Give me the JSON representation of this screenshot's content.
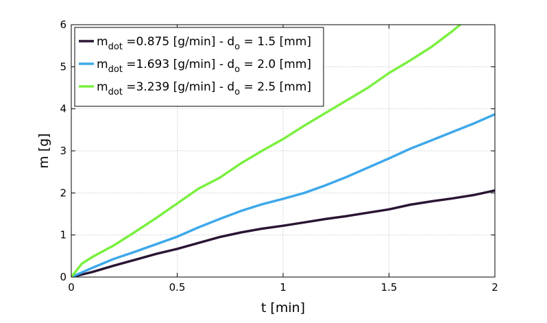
{
  "chart_data": {
    "type": "line",
    "xlabel": "t [min]",
    "ylabel": "m [g]",
    "xlim": [
      0,
      2
    ],
    "ylim": [
      0,
      6
    ],
    "xticks": [
      0,
      0.5,
      1,
      1.5,
      2
    ],
    "xtick_labels": [
      "0",
      "0.5",
      "1",
      "1.5",
      "2"
    ],
    "yticks": [
      0,
      1,
      2,
      3,
      4,
      5,
      6
    ],
    "ytick_labels": [
      "0",
      "1",
      "2",
      "3",
      "4",
      "5",
      "6"
    ],
    "grid": true,
    "legend_position": "top-left",
    "series": [
      {
        "name": "m_dot =0.875 [g/min] - d_o = 1.5 [mm]",
        "legend_parts": {
          "sym": "m",
          "sub": "dot",
          "mid": " =0.875 [g/min] - d",
          "sub2": "o",
          "tail": " = 1.5 [mm]"
        },
        "color": "#2a1533",
        "x": [
          0,
          0.1,
          0.2,
          0.3,
          0.4,
          0.5,
          0.6,
          0.7,
          0.8,
          0.9,
          1.0,
          1.1,
          1.2,
          1.3,
          1.4,
          1.5,
          1.6,
          1.7,
          1.8,
          1.9,
          2.0
        ],
        "y": [
          0,
          0.12,
          0.27,
          0.41,
          0.55,
          0.67,
          0.81,
          0.95,
          1.06,
          1.15,
          1.22,
          1.3,
          1.38,
          1.45,
          1.53,
          1.61,
          1.72,
          1.8,
          1.87,
          1.95,
          2.06
        ]
      },
      {
        "name": "m_dot =1.693 [g/min] - d_o = 2.0 [mm]",
        "legend_parts": {
          "sym": "m",
          "sub": "dot",
          "mid": " =1.693 [g/min] - d",
          "sub2": "o",
          "tail": " = 2.0 [mm]"
        },
        "color": "#3ea8ea",
        "x": [
          0,
          0.1,
          0.2,
          0.3,
          0.4,
          0.5,
          0.6,
          0.7,
          0.8,
          0.9,
          1.0,
          1.1,
          1.2,
          1.3,
          1.4,
          1.5,
          1.6,
          1.7,
          1.8,
          1.9,
          2.0
        ],
        "y": [
          0,
          0.22,
          0.43,
          0.6,
          0.78,
          0.96,
          1.18,
          1.38,
          1.57,
          1.73,
          1.86,
          2.0,
          2.18,
          2.38,
          2.6,
          2.82,
          3.05,
          3.25,
          3.45,
          3.65,
          3.87
        ]
      },
      {
        "name": "m_dot =3.239 [g/min] - d_o = 2.5 [mm]",
        "legend_parts": {
          "sym": "m",
          "sub": "dot",
          "mid": " =3.239 [g/min] - d",
          "sub2": "o",
          "tail": " = 2.5 [mm]"
        },
        "color": "#7af040",
        "x": [
          0,
          0.05,
          0.1,
          0.2,
          0.3,
          0.4,
          0.5,
          0.6,
          0.7,
          0.8,
          0.9,
          1.0,
          1.1,
          1.2,
          1.3,
          1.4,
          1.5,
          1.6,
          1.7,
          1.8,
          1.86
        ],
        "y": [
          0,
          0.32,
          0.48,
          0.75,
          1.07,
          1.4,
          1.75,
          2.1,
          2.36,
          2.7,
          3.0,
          3.28,
          3.6,
          3.9,
          4.2,
          4.5,
          4.85,
          5.15,
          5.47,
          5.85,
          6.1
        ]
      }
    ]
  }
}
